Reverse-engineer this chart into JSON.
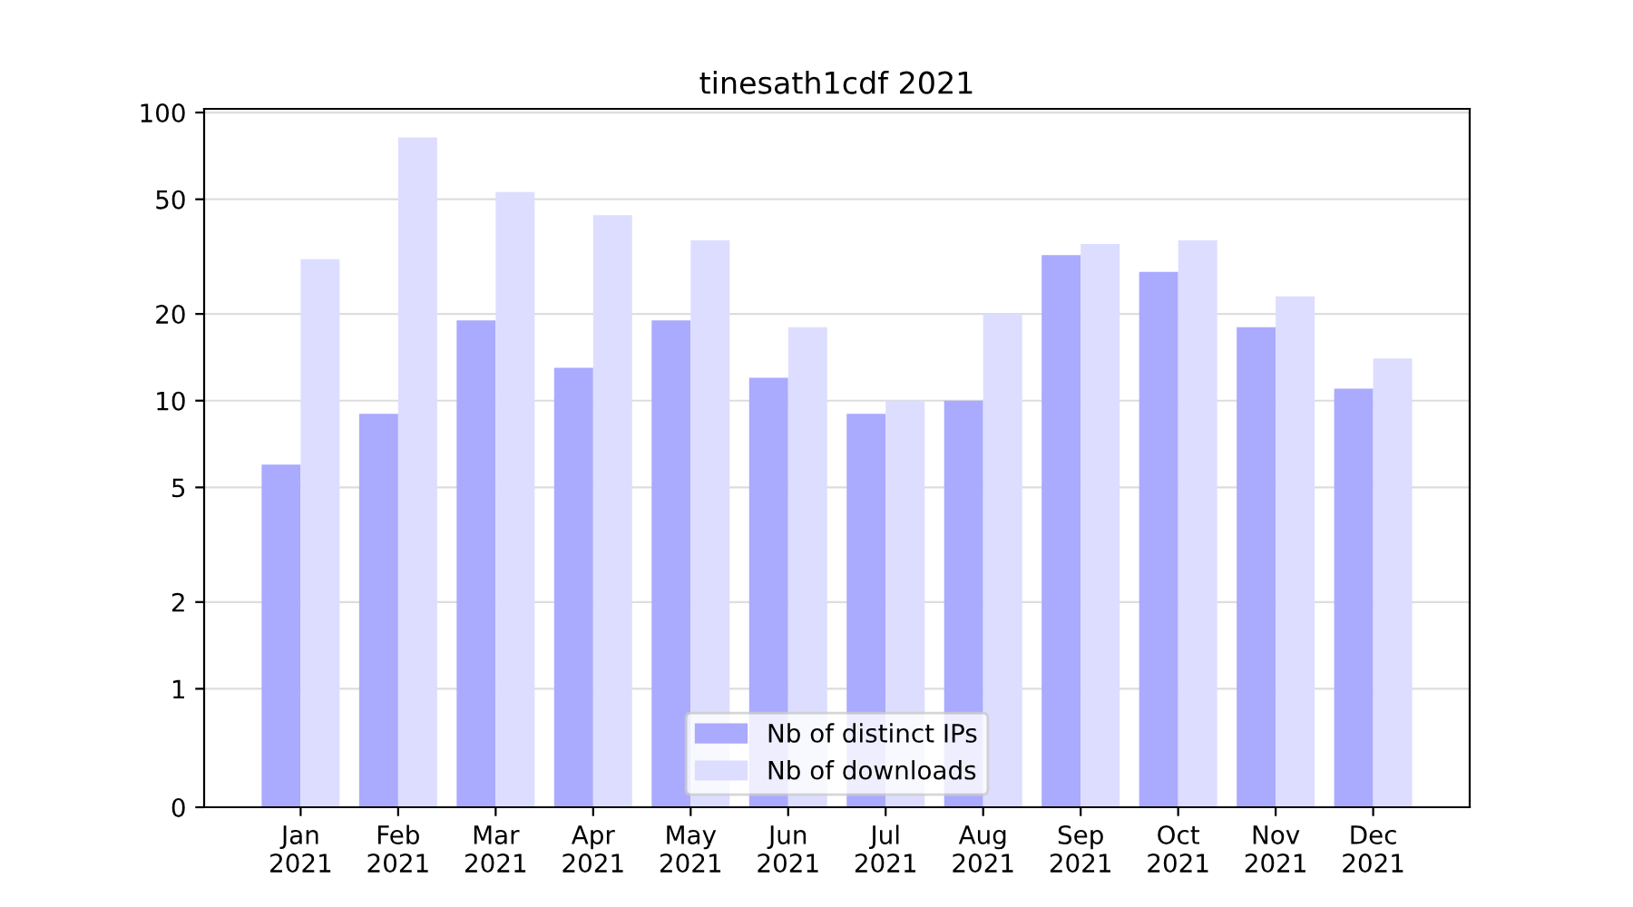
{
  "chart_data": {
    "type": "bar",
    "title": "tinesath1cdf 2021",
    "categories": [
      "Jan\n2021",
      "Feb\n2021",
      "Mar\n2021",
      "Apr\n2021",
      "May\n2021",
      "Jun\n2021",
      "Jul\n2021",
      "Aug\n2021",
      "Sep\n2021",
      "Oct\n2021",
      "Nov\n2021",
      "Dec\n2021"
    ],
    "series": [
      {
        "name": "Nb of distinct IPs",
        "color": "#aaaaff",
        "values": [
          6,
          9,
          19,
          13,
          19,
          12,
          9,
          10,
          32,
          28,
          18,
          11
        ]
      },
      {
        "name": "Nb of downloads",
        "color": "#ddddff",
        "values": [
          31,
          82,
          53,
          44,
          36,
          18,
          10,
          20,
          35,
          36,
          23,
          14
        ]
      }
    ],
    "log": "y",
    "ylim": [
      0,
      103
    ],
    "yticks": [
      0,
      1,
      2,
      5,
      10,
      20,
      50,
      100
    ],
    "grid": "y",
    "legend": "bottom"
  }
}
